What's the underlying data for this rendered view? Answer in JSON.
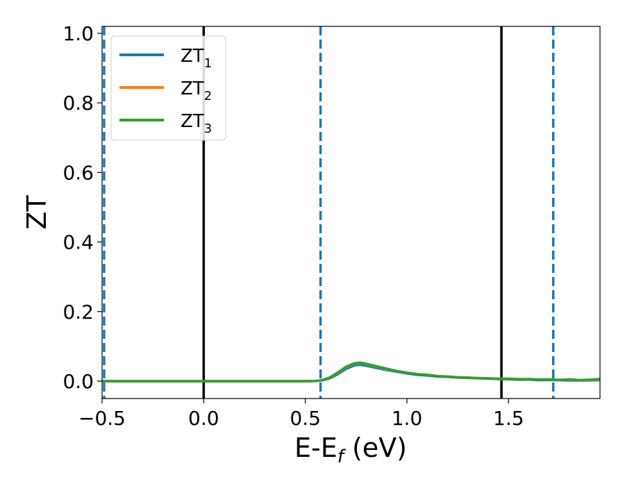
{
  "chart_data": {
    "type": "line",
    "xlabel": {
      "main": "E-E",
      "sub": "f",
      "tail": " (eV)"
    },
    "ylabel": "ZT",
    "xlim": [
      -0.5,
      1.95
    ],
    "ylim": [
      -0.05,
      1.02
    ],
    "xticks": [
      {
        "value": -0.5,
        "label": "−0.5"
      },
      {
        "value": 0.0,
        "label": "0.0"
      },
      {
        "value": 0.5,
        "label": "0.5"
      },
      {
        "value": 1.0,
        "label": "1.0"
      },
      {
        "value": 1.5,
        "label": "1.5"
      }
    ],
    "yticks": [
      {
        "value": 0.0,
        "label": "0.0"
      },
      {
        "value": 0.2,
        "label": "0.2"
      },
      {
        "value": 0.4,
        "label": "0.4"
      },
      {
        "value": 0.6,
        "label": "0.6"
      },
      {
        "value": 0.8,
        "label": "0.8"
      },
      {
        "value": 1.0,
        "label": "1.0"
      }
    ],
    "grid": false,
    "legend_position": "top-left",
    "vlines_solid": {
      "color": "#000000",
      "x": [
        0.0,
        1.465
      ]
    },
    "vlines_dashed": {
      "color": "#1f77b4",
      "x": [
        -0.49,
        0.575,
        1.72
      ]
    },
    "series": [
      {
        "name": "ZT",
        "sub": "1",
        "color": "#1f77b4",
        "x": [
          -0.5,
          0.0,
          0.5,
          0.55,
          0.58,
          0.62,
          0.66,
          0.7,
          0.74,
          0.77,
          0.8,
          0.85,
          0.9,
          0.95,
          1.0,
          1.05,
          1.1,
          1.15,
          1.2,
          1.25,
          1.3,
          1.35,
          1.4,
          1.45,
          1.5,
          1.55,
          1.6,
          1.65,
          1.7,
          1.75,
          1.8,
          1.85,
          1.9,
          1.95
        ],
        "y": [
          0.0,
          0.0,
          0.0,
          0.0005,
          0.002,
          0.008,
          0.02,
          0.035,
          0.045,
          0.047,
          0.044,
          0.038,
          0.032,
          0.027,
          0.022,
          0.018,
          0.016,
          0.013,
          0.012,
          0.01,
          0.009,
          0.008,
          0.007,
          0.006,
          0.005,
          0.004,
          0.004,
          0.003,
          0.003,
          0.003,
          0.002,
          0.002,
          0.002,
          0.003
        ]
      },
      {
        "name": "ZT",
        "sub": "2",
        "color": "#ff7f0e",
        "x": [
          -0.5,
          0.0,
          0.5,
          0.55,
          0.58,
          0.62,
          0.66,
          0.7,
          0.74,
          0.77,
          0.8,
          0.85,
          0.9,
          0.95,
          1.0,
          1.05,
          1.1,
          1.15,
          1.2,
          1.25,
          1.3,
          1.35,
          1.4,
          1.45,
          1.5,
          1.55,
          1.6,
          1.65,
          1.7,
          1.75,
          1.8,
          1.85,
          1.9,
          1.95
        ],
        "y": [
          0.0,
          0.0,
          0.0,
          0.0006,
          0.0025,
          0.01,
          0.024,
          0.04,
          0.05,
          0.052,
          0.049,
          0.042,
          0.035,
          0.029,
          0.024,
          0.02,
          0.018,
          0.015,
          0.013,
          0.011,
          0.01,
          0.009,
          0.008,
          0.007,
          0.006,
          0.006,
          0.005,
          0.005,
          0.004,
          0.004,
          0.004,
          0.003,
          0.003,
          0.005
        ]
      },
      {
        "name": "ZT",
        "sub": "3",
        "color": "#2ca02c",
        "x": [
          -0.5,
          0.0,
          0.5,
          0.55,
          0.58,
          0.62,
          0.66,
          0.7,
          0.74,
          0.77,
          0.8,
          0.85,
          0.9,
          0.95,
          1.0,
          1.05,
          1.1,
          1.15,
          1.2,
          1.25,
          1.3,
          1.35,
          1.4,
          1.45,
          1.5,
          1.55,
          1.6,
          1.65,
          1.7,
          1.75,
          1.8,
          1.85,
          1.9,
          1.95
        ],
        "y": [
          0.0,
          0.0,
          0.0,
          0.0006,
          0.0025,
          0.01,
          0.025,
          0.041,
          0.051,
          0.053,
          0.05,
          0.043,
          0.036,
          0.029,
          0.024,
          0.02,
          0.018,
          0.014,
          0.013,
          0.011,
          0.01,
          0.008,
          0.008,
          0.006,
          0.007,
          0.005,
          0.006,
          0.004,
          0.005,
          0.003,
          0.005,
          0.003,
          0.004,
          0.006
        ]
      }
    ]
  }
}
